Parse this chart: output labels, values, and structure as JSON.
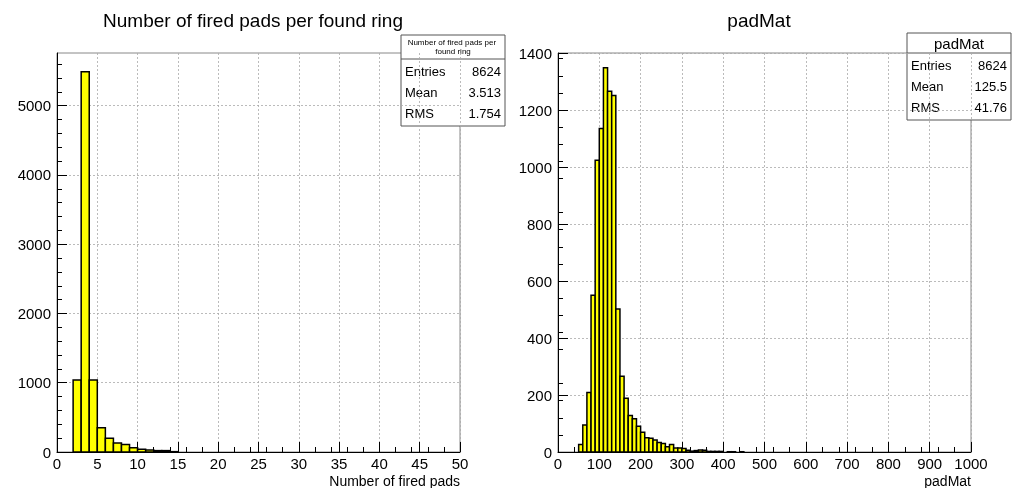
{
  "chart_data": [
    {
      "type": "histogram",
      "title": "Number of fired pads per found ring",
      "xlabel": "Number of fired pads",
      "color": "#ffff00",
      "bins": [
        0,
        1,
        2,
        3,
        4,
        5,
        6,
        7,
        8,
        9,
        10,
        11,
        12,
        13,
        14,
        15,
        16,
        17,
        18,
        19,
        20,
        21,
        22,
        23,
        24,
        25,
        26,
        27,
        28,
        29,
        30,
        31,
        32,
        33,
        34,
        35,
        36,
        37,
        38,
        39,
        40,
        41,
        42,
        43,
        44,
        45,
        46,
        47,
        48,
        49,
        50
      ],
      "values": [
        0,
        0,
        1040,
        5490,
        1040,
        350,
        200,
        130,
        110,
        60,
        40,
        30,
        20,
        20,
        5,
        null,
        null,
        null,
        0,
        0,
        0,
        0,
        0,
        0,
        0,
        0,
        0,
        0,
        0,
        0,
        0,
        0,
        0,
        0,
        0,
        0,
        0,
        0,
        0,
        0,
        0,
        0,
        0,
        0,
        0,
        0,
        0,
        0,
        0,
        0
      ],
      "xlim": [
        0,
        50
      ],
      "xticks": [
        0,
        5,
        10,
        15,
        20,
        25,
        30,
        35,
        40,
        45,
        50
      ],
      "ylim": [
        0,
        5760
      ],
      "yticks": [
        0,
        1000,
        2000,
        3000,
        4000,
        5000
      ],
      "grid": true,
      "annotations": [
        "Number of fired pads per found ring",
        "Entries 8624",
        "Mean 3.513",
        "RMS 1.754"
      ]
    },
    {
      "type": "histogram",
      "title": "padMat",
      "xlabel": "padMat",
      "color": "#ffff00",
      "bins": [
        0,
        10,
        20,
        30,
        40,
        50,
        60,
        70,
        80,
        90,
        100,
        110,
        120,
        130,
        140,
        150,
        160,
        170,
        180,
        190,
        200,
        210,
        220,
        230,
        240,
        250,
        260,
        270,
        280,
        290,
        300,
        310,
        320,
        330,
        340,
        350,
        360,
        370,
        380,
        390,
        400,
        410,
        420,
        430,
        440,
        450,
        460,
        470,
        480,
        490,
        500,
        510,
        520,
        530,
        540,
        550,
        560,
        570,
        580,
        590,
        600,
        610,
        620,
        630,
        640,
        650,
        660,
        670,
        680,
        690,
        700,
        710,
        720,
        730,
        740,
        750,
        760,
        770,
        780,
        790,
        800,
        810,
        820,
        830,
        840,
        850,
        860,
        870,
        880,
        890,
        900,
        910,
        920,
        930,
        940,
        950,
        960,
        970,
        980,
        990,
        1000
      ],
      "values": [
        0,
        0,
        0,
        0,
        0,
        26,
        95,
        209,
        550,
        1024,
        1135,
        1348,
        1266,
        1251,
        502,
        266,
        189,
        128,
        117,
        90,
        69,
        50,
        48,
        42,
        33,
        30,
        18,
        26,
        14,
        14,
        12,
        6,
        3,
        5,
        7,
        6,
        2,
        2,
        2,
        2,
        0,
        1,
        1,
        0,
        1,
        0,
        0,
        0,
        0,
        0,
        0,
        0,
        0,
        0,
        0,
        0,
        0,
        0,
        0,
        0,
        0,
        0,
        0,
        0,
        0,
        0,
        0,
        0,
        0,
        0,
        0,
        0,
        0,
        0,
        0,
        0,
        0,
        0,
        0,
        0,
        0,
        0,
        0,
        0,
        0,
        0,
        0,
        0,
        0,
        0,
        0,
        0,
        0,
        0,
        0,
        0,
        0,
        0,
        0,
        0
      ],
      "xlim": [
        0,
        1000
      ],
      "xticks": [
        0,
        100,
        200,
        300,
        400,
        500,
        600,
        700,
        800,
        900,
        1000
      ],
      "ylim": [
        0,
        1400
      ],
      "yticks": [
        0,
        200,
        400,
        600,
        800,
        1000,
        1200,
        1400
      ],
      "grid": true,
      "annotations": [
        "padMat",
        "Entries 8624",
        "Mean 125.5",
        "RMS 41.76"
      ]
    }
  ]
}
